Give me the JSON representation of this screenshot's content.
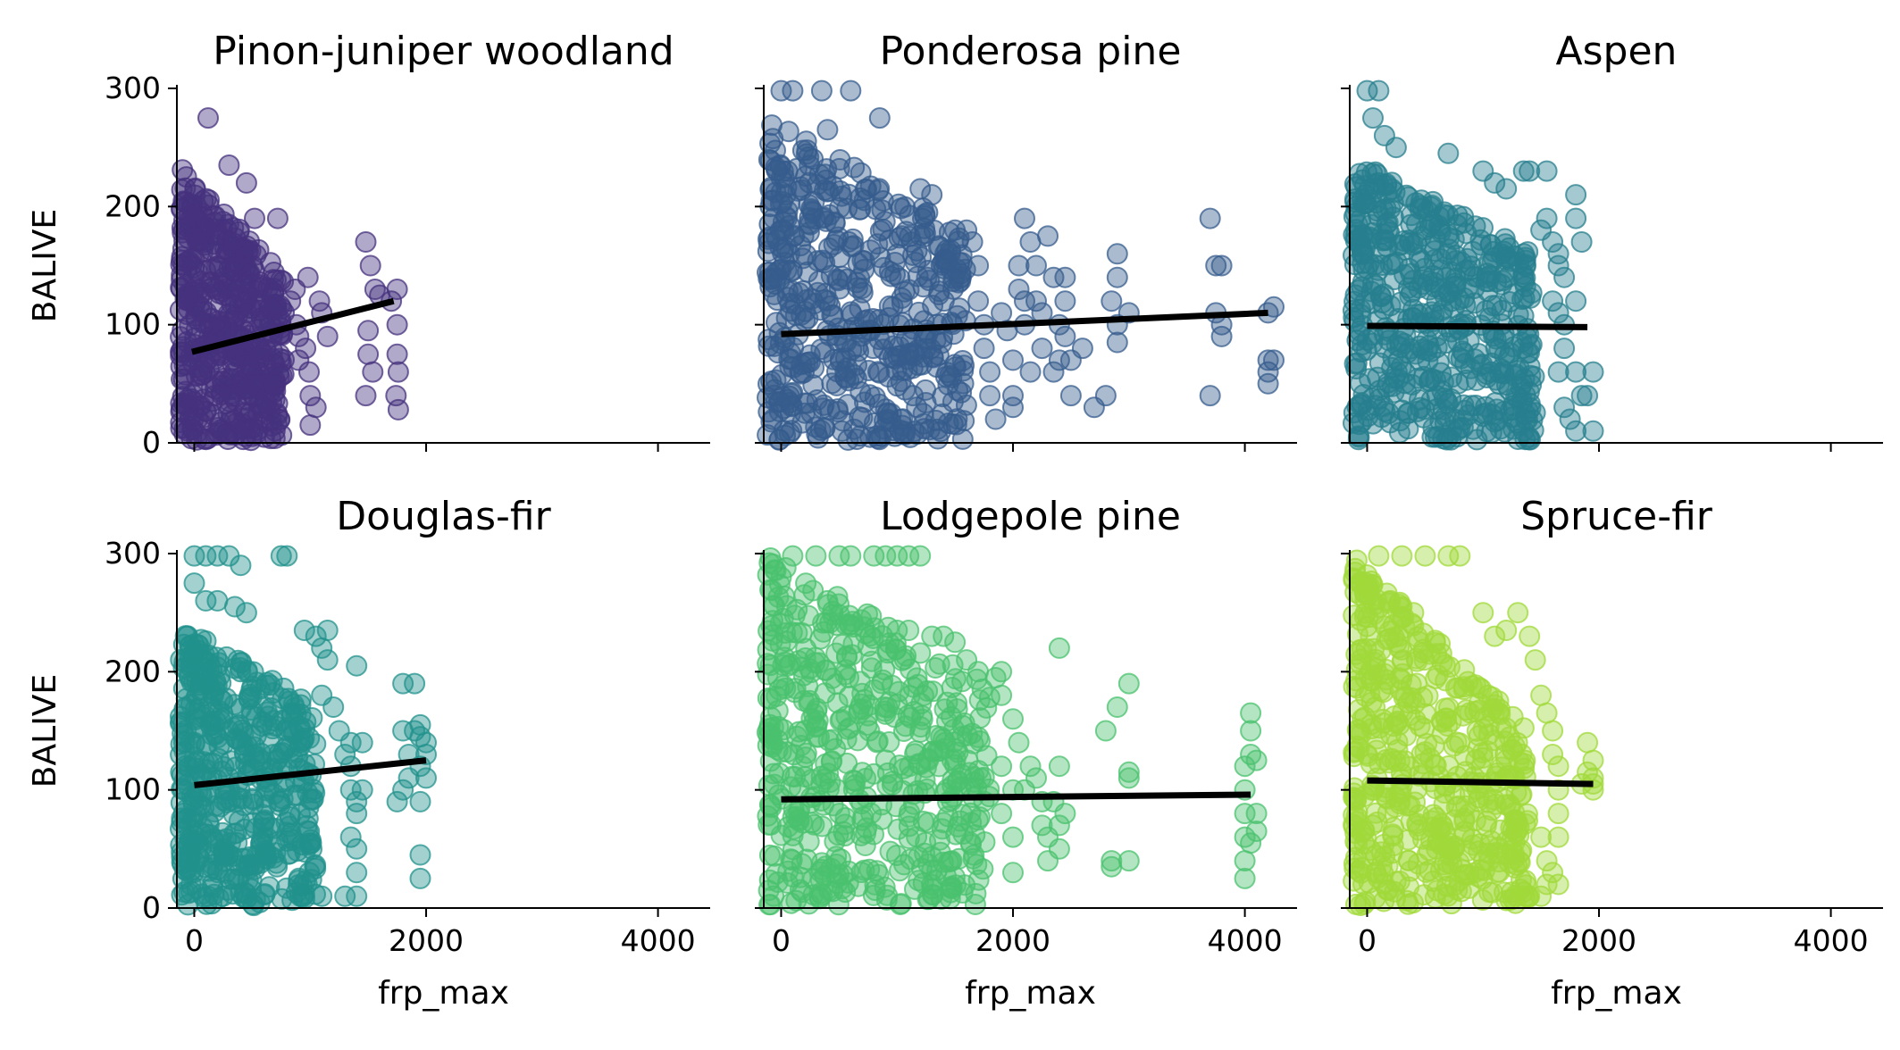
{
  "chart_data": {
    "type": "scatter",
    "layout": "2x3 facet grid, shared x and y axes",
    "xlabel": "frp_max",
    "ylabel": "BALIVE",
    "xlim": [
      -150,
      4450
    ],
    "ylim": [
      0,
      300
    ],
    "xticks": [
      0,
      2000,
      4000
    ],
    "yticks": [
      0,
      100,
      200,
      300
    ],
    "trend_color": "#000000",
    "panels": [
      {
        "title": "Pinon-juniper woodland",
        "color": "#46327e",
        "dense": {
          "x": [
            -120,
            780
          ],
          "ytop_start": 235,
          "ytop_end": 140
        },
        "points": [
          [
            830,
            120
          ],
          [
            880,
            100
          ],
          [
            900,
            90
          ],
          [
            900,
            70
          ],
          [
            960,
            80
          ],
          [
            980,
            140
          ],
          [
            990,
            60
          ],
          [
            1000,
            40
          ],
          [
            1000,
            15
          ],
          [
            1050,
            30
          ],
          [
            1080,
            120
          ],
          [
            1100,
            110
          ],
          [
            1150,
            90
          ],
          [
            120,
            275
          ],
          [
            300,
            235
          ],
          [
            450,
            220
          ],
          [
            520,
            190
          ],
          [
            720,
            190
          ],
          [
            870,
            130
          ],
          [
            1480,
            170
          ],
          [
            1520,
            150
          ],
          [
            1560,
            130
          ],
          [
            1500,
            95
          ],
          [
            1500,
            75
          ],
          [
            1480,
            40
          ],
          [
            1750,
            130
          ],
          [
            1750,
            100
          ],
          [
            1750,
            75
          ],
          [
            1760,
            60
          ],
          [
            1740,
            40
          ],
          [
            1760,
            28
          ],
          [
            1700,
            120
          ],
          [
            1540,
            60
          ],
          [
            1600,
            125
          ]
        ],
        "trend": {
          "x": [
            -20,
            1720
          ],
          "y": [
            77,
            120
          ]
        }
      },
      {
        "title": "Ponderosa pine",
        "color": "#365c8d",
        "dense": {
          "x": [
            -120,
            1600
          ],
          "ytop_start": 275,
          "ytop_end": 180
        },
        "points": [
          [
            0,
            298
          ],
          [
            100,
            298
          ],
          [
            350,
            298
          ],
          [
            600,
            298
          ],
          [
            850,
            275
          ],
          [
            400,
            265
          ],
          [
            1200,
            215
          ],
          [
            1300,
            210
          ],
          [
            1500,
            180
          ],
          [
            1600,
            180
          ],
          [
            1650,
            170
          ],
          [
            1700,
            150
          ],
          [
            1700,
            120
          ],
          [
            1750,
            100
          ],
          [
            1750,
            80
          ],
          [
            1800,
            60
          ],
          [
            1800,
            40
          ],
          [
            1850,
            20
          ],
          [
            1900,
            110
          ],
          [
            1950,
            95
          ],
          [
            2000,
            70
          ],
          [
            2000,
            40
          ],
          [
            2000,
            30
          ],
          [
            2050,
            150
          ],
          [
            2050,
            130
          ],
          [
            2100,
            190
          ],
          [
            2100,
            120
          ],
          [
            2100,
            100
          ],
          [
            2150,
            170
          ],
          [
            2150,
            60
          ],
          [
            2200,
            150
          ],
          [
            2200,
            120
          ],
          [
            2250,
            110
          ],
          [
            2250,
            80
          ],
          [
            2300,
            175
          ],
          [
            2350,
            140
          ],
          [
            2350,
            60
          ],
          [
            2400,
            100
          ],
          [
            2400,
            70
          ],
          [
            2450,
            140
          ],
          [
            2450,
            120
          ],
          [
            2450,
            90
          ],
          [
            2500,
            70
          ],
          [
            2500,
            40
          ],
          [
            2600,
            80
          ],
          [
            2700,
            30
          ],
          [
            2800,
            40
          ],
          [
            2850,
            120
          ],
          [
            2900,
            160
          ],
          [
            2900,
            140
          ],
          [
            2900,
            100
          ],
          [
            2900,
            85
          ],
          [
            3000,
            110
          ],
          [
            3700,
            190
          ],
          [
            3750,
            150
          ],
          [
            3750,
            110
          ],
          [
            3700,
            40
          ],
          [
            3800,
            100
          ],
          [
            3800,
            90
          ],
          [
            3800,
            150
          ],
          [
            4200,
            110
          ],
          [
            4200,
            70
          ],
          [
            4200,
            60
          ],
          [
            4200,
            50
          ],
          [
            4250,
            115
          ],
          [
            4250,
            70
          ]
        ],
        "trend": {
          "x": [
            0,
            4200
          ],
          "y": [
            92,
            110
          ]
        }
      },
      {
        "title": "Aspen",
        "color": "#277f8e",
        "dense": {
          "x": [
            -120,
            1450
          ],
          "ytop_start": 240,
          "ytop_end": 160
        },
        "points": [
          [
            0,
            298
          ],
          [
            100,
            298
          ],
          [
            50,
            275
          ],
          [
            150,
            260
          ],
          [
            250,
            250
          ],
          [
            700,
            245
          ],
          [
            1000,
            230
          ],
          [
            1100,
            220
          ],
          [
            1200,
            215
          ],
          [
            1350,
            230
          ],
          [
            1400,
            230
          ],
          [
            1550,
            230
          ],
          [
            1550,
            190
          ],
          [
            1500,
            180
          ],
          [
            1600,
            170
          ],
          [
            1650,
            160
          ],
          [
            1650,
            150
          ],
          [
            1700,
            140
          ],
          [
            1600,
            120
          ],
          [
            1650,
            110
          ],
          [
            1700,
            100
          ],
          [
            1700,
            80
          ],
          [
            1650,
            60
          ],
          [
            1700,
            30
          ],
          [
            1750,
            20
          ],
          [
            1800,
            210
          ],
          [
            1800,
            190
          ],
          [
            1850,
            170
          ],
          [
            1800,
            120
          ],
          [
            1800,
            60
          ],
          [
            1850,
            40
          ],
          [
            1900,
            40
          ],
          [
            1950,
            60
          ],
          [
            1800,
            10
          ],
          [
            1950,
            10
          ],
          [
            1350,
            10
          ]
        ],
        "trend": {
          "x": [
            0,
            1900
          ],
          "y": [
            99,
            98
          ]
        }
      },
      {
        "title": "Douglas-fir",
        "color": "#21918c",
        "dense": {
          "x": [
            -120,
            1050
          ],
          "ytop_start": 240,
          "ytop_end": 170
        },
        "points": [
          [
            0,
            298
          ],
          [
            100,
            298
          ],
          [
            200,
            298
          ],
          [
            300,
            298
          ],
          [
            400,
            290
          ],
          [
            750,
            298
          ],
          [
            800,
            298
          ],
          [
            0,
            275
          ],
          [
            100,
            260
          ],
          [
            200,
            260
          ],
          [
            350,
            255
          ],
          [
            450,
            250
          ],
          [
            1050,
            230
          ],
          [
            1150,
            235
          ],
          [
            950,
            235
          ],
          [
            1100,
            220
          ],
          [
            1150,
            210
          ],
          [
            1100,
            180
          ],
          [
            1200,
            170
          ],
          [
            1250,
            150
          ],
          [
            1300,
            130
          ],
          [
            1350,
            140
          ],
          [
            1350,
            120
          ],
          [
            1350,
            100
          ],
          [
            1400,
            90
          ],
          [
            1400,
            80
          ],
          [
            1350,
            60
          ],
          [
            1400,
            50
          ],
          [
            1400,
            30
          ],
          [
            1300,
            10
          ],
          [
            1100,
            10
          ],
          [
            1400,
            10
          ],
          [
            1400,
            205
          ],
          [
            1450,
            100
          ],
          [
            1450,
            140
          ],
          [
            1800,
            190
          ],
          [
            1800,
            150
          ],
          [
            1900,
            190
          ],
          [
            1850,
            130
          ],
          [
            1800,
            100
          ],
          [
            1850,
            110
          ],
          [
            1900,
            150
          ],
          [
            1950,
            155
          ],
          [
            1950,
            145
          ],
          [
            1950,
            120
          ],
          [
            2000,
            140
          ],
          [
            2000,
            110
          ],
          [
            1950,
            90
          ],
          [
            1950,
            45
          ],
          [
            1950,
            25
          ],
          [
            2000,
            130
          ],
          [
            1750,
            90
          ]
        ],
        "trend": {
          "x": [
            0,
            2000
          ],
          "y": [
            104,
            125
          ]
        }
      },
      {
        "title": "Lodgepole pine",
        "color": "#4ac16d",
        "dense": {
          "x": [
            -120,
            1800
          ],
          "ytop_start": 298,
          "ytop_end": 190
        },
        "points": [
          [
            100,
            298
          ],
          [
            300,
            298
          ],
          [
            500,
            298
          ],
          [
            600,
            298
          ],
          [
            800,
            298
          ],
          [
            900,
            298
          ],
          [
            1000,
            298
          ],
          [
            1100,
            298
          ],
          [
            1200,
            298
          ],
          [
            0,
            280
          ],
          [
            200,
            265
          ],
          [
            400,
            260
          ],
          [
            1000,
            235
          ],
          [
            1100,
            235
          ],
          [
            1300,
            230
          ],
          [
            1400,
            230
          ],
          [
            1500,
            225
          ],
          [
            1600,
            210
          ],
          [
            1700,
            200
          ],
          [
            1850,
            195
          ],
          [
            1900,
            200
          ],
          [
            1900,
            180
          ],
          [
            2000,
            160
          ],
          [
            2050,
            140
          ],
          [
            1900,
            120
          ],
          [
            2000,
            100
          ],
          [
            1900,
            80
          ],
          [
            2000,
            60
          ],
          [
            2000,
            30
          ],
          [
            2100,
            100
          ],
          [
            2150,
            120
          ],
          [
            2200,
            110
          ],
          [
            2250,
            90
          ],
          [
            2250,
            70
          ],
          [
            2300,
            60
          ],
          [
            2300,
            40
          ],
          [
            2350,
            90
          ],
          [
            2400,
            70
          ],
          [
            2400,
            50
          ],
          [
            2400,
            120
          ],
          [
            2400,
            220
          ],
          [
            2450,
            80
          ],
          [
            2800,
            150
          ],
          [
            2850,
            40
          ],
          [
            2850,
            35
          ],
          [
            2900,
            170
          ],
          [
            3000,
            190
          ],
          [
            3000,
            115
          ],
          [
            3000,
            110
          ],
          [
            3000,
            40
          ],
          [
            4050,
            165
          ],
          [
            4050,
            150
          ],
          [
            4050,
            130
          ],
          [
            4000,
            120
          ],
          [
            4000,
            100
          ],
          [
            4000,
            80
          ],
          [
            4000,
            60
          ],
          [
            4050,
            55
          ],
          [
            4000,
            40
          ],
          [
            4000,
            25
          ],
          [
            4100,
            125
          ],
          [
            4100,
            80
          ],
          [
            4100,
            65
          ]
        ],
        "trend": {
          "x": [
            0,
            4050
          ],
          "y": [
            92,
            96
          ]
        }
      },
      {
        "title": "Spruce-fir",
        "color": "#a0da39",
        "dense": {
          "x": [
            -120,
            1400
          ],
          "ytop_start": 298,
          "ytop_end": 150
        },
        "points": [
          [
            100,
            298
          ],
          [
            300,
            298
          ],
          [
            500,
            298
          ],
          [
            700,
            298
          ],
          [
            800,
            298
          ],
          [
            0,
            270
          ],
          [
            200,
            260
          ],
          [
            300,
            255
          ],
          [
            400,
            250
          ],
          [
            1000,
            250
          ],
          [
            1300,
            250
          ],
          [
            1400,
            230
          ],
          [
            1200,
            235
          ],
          [
            1100,
            230
          ],
          [
            1450,
            210
          ],
          [
            1500,
            180
          ],
          [
            1550,
            165
          ],
          [
            1600,
            150
          ],
          [
            1600,
            130
          ],
          [
            1650,
            120
          ],
          [
            1650,
            100
          ],
          [
            1650,
            80
          ],
          [
            1650,
            60
          ],
          [
            1550,
            40
          ],
          [
            1650,
            20
          ],
          [
            1500,
            10
          ],
          [
            1400,
            10
          ],
          [
            1600,
            30
          ],
          [
            1900,
            140
          ],
          [
            1950,
            125
          ],
          [
            1950,
            110
          ],
          [
            1950,
            100
          ],
          [
            1900,
            115
          ],
          [
            1850,
            105
          ],
          [
            1950,
            105
          ],
          [
            1500,
            60
          ],
          [
            1550,
            20
          ]
        ],
        "trend": {
          "x": [
            0,
            1950
          ],
          "y": [
            108,
            105
          ]
        }
      }
    ]
  }
}
